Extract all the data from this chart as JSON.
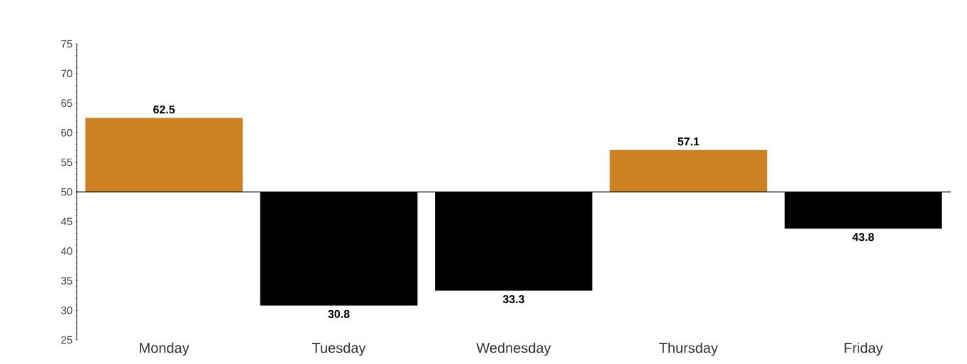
{
  "chart_data": {
    "type": "bar",
    "categories": [
      "Monday",
      "Tuesday",
      "Wednesday",
      "Thursday",
      "Friday"
    ],
    "values": [
      12.5,
      -19.2,
      -16.7,
      7.1,
      -6.2
    ],
    "base": [
      50,
      50,
      50,
      50,
      50
    ],
    "colors": [
      "#cc8222",
      "#000000",
      "#000000",
      "#cc8222",
      "#000000"
    ],
    "value_labels": [
      "62.5",
      "30.8",
      "33.3",
      "57.1",
      "43.8"
    ],
    "ylim": [
      25,
      75
    ],
    "yticks": [
      25,
      30,
      35,
      40,
      45,
      50,
      55,
      60,
      65,
      70,
      75
    ],
    "ref_lines": [
      {
        "axis": "y",
        "value": 50,
        "color": "#000000"
      }
    ],
    "grid": false
  }
}
